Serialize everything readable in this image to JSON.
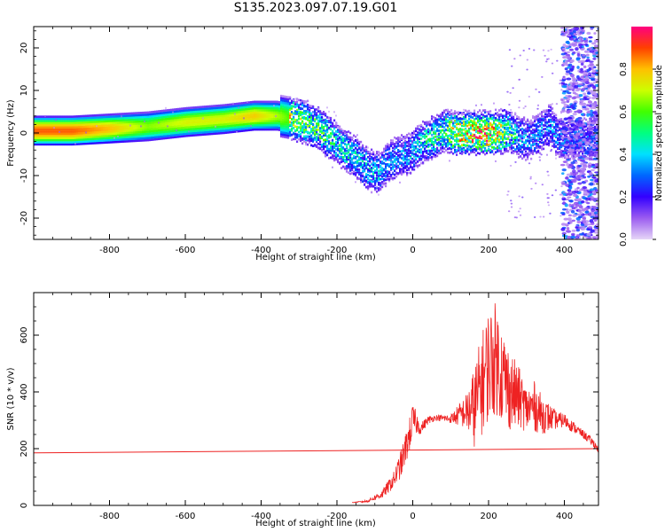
{
  "title": "S135.2023.097.07.19.G01",
  "chart_data": [
    {
      "type": "heatmap",
      "xlabel": "Height of straight line (km)",
      "ylabel": "Frequency (Hz)",
      "xlim": [
        -1000,
        490
      ],
      "ylim": [
        -25,
        25
      ],
      "xticks": [
        -800,
        -600,
        -400,
        -200,
        0,
        200,
        400
      ],
      "yticks": [
        -20,
        -10,
        0,
        10,
        20
      ],
      "colorbar": {
        "label": "Normalized spectral amplitude",
        "range": [
          0,
          1
        ],
        "ticks": [
          0.0,
          0.2,
          0.4,
          0.6,
          0.8
        ],
        "colors": [
          "#e6d6f7",
          "#9b5cf0",
          "#3300ff",
          "#0066ff",
          "#00e0ff",
          "#00ff80",
          "#40ff00",
          "#ccff00",
          "#ffc000",
          "#ff4000",
          "#ff0080"
        ]
      },
      "ridge": {
        "x": [
          -1000,
          -900,
          -800,
          -700,
          -600,
          -500,
          -420,
          -360,
          -300,
          -250,
          -200,
          -150,
          -120,
          -90,
          -70,
          -40,
          -10,
          20,
          50,
          80,
          120,
          200,
          250,
          280,
          300,
          330,
          360,
          380,
          400
        ],
        "y": [
          0.5,
          0.5,
          1.0,
          1.5,
          2.5,
          3.2,
          4.0,
          4.0,
          3.0,
          1.0,
          -2.5,
          -6.0,
          -8.5,
          -9.5,
          -7.0,
          -5.5,
          -5.0,
          -2.5,
          -1.0,
          0.5,
          0.0,
          0.0,
          0.5,
          -1.0,
          -1.5,
          0.0,
          2.0,
          -1.0,
          -1.5
        ],
        "amplitude": [
          0.88,
          0.88,
          0.8,
          0.65,
          0.72,
          0.72,
          0.78,
          0.68,
          0.55,
          0.5,
          0.42,
          0.38,
          0.36,
          0.32,
          0.3,
          0.3,
          0.32,
          0.38,
          0.42,
          0.48,
          0.7,
          0.78,
          0.5,
          0.35,
          0.3,
          0.28,
          0.3,
          0.3,
          0.25
        ]
      }
    },
    {
      "type": "line",
      "xlabel": "Height of straight line (km)",
      "ylabel": "SNR (10 * v/v)",
      "xlim": [
        -1000,
        490
      ],
      "ylim": [
        0,
        750
      ],
      "xticks": [
        -800,
        -600,
        -400,
        -200,
        0,
        200,
        400
      ],
      "yticks": [
        0,
        200,
        400,
        600
      ],
      "color": "#ee2222",
      "series": [
        {
          "x": [
            -1000,
            490
          ],
          "y": [
            185,
            200
          ]
        },
        {
          "x": [
            -160,
            -120,
            -80,
            -50,
            -30,
            -10,
            0,
            10,
            20,
            40,
            60,
            100,
            140,
            160,
            180,
            200,
            220,
            240,
            260,
            280,
            300,
            320,
            340,
            360,
            380,
            400,
            420,
            440,
            460,
            480,
            490
          ],
          "y": [
            10,
            15,
            40,
            90,
            150,
            240,
            300,
            290,
            270,
            300,
            310,
            305,
            330,
            340,
            420,
            500,
            520,
            450,
            400,
            380,
            340,
            350,
            320,
            310,
            300,
            300,
            280,
            260,
            240,
            215,
            195
          ],
          "spread": [
            0,
            5,
            15,
            30,
            50,
            60,
            60,
            40,
            20,
            15,
            10,
            15,
            60,
            140,
            180,
            200,
            200,
            170,
            140,
            110,
            80,
            90,
            70,
            50,
            30,
            25,
            20,
            15,
            15,
            15,
            10
          ]
        }
      ]
    }
  ]
}
